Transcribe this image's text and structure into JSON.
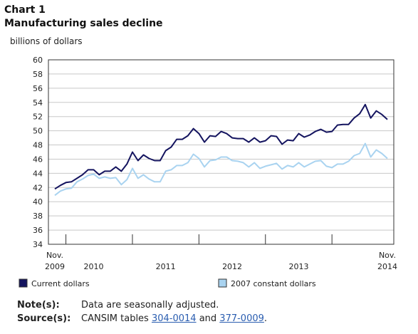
{
  "header": {
    "chart_label": "Chart 1",
    "chart_title": "Manufacturing sales decline",
    "unit": "billions of dollars"
  },
  "notes": {
    "note_key": "Note(s):",
    "note_text": "Data are seasonally adjusted.",
    "source_key": "Source(s):",
    "source_prefix": "CANSIM tables ",
    "link1": "304-0014",
    "source_mid": " and ",
    "link2": "377-0009",
    "source_suffix": "."
  },
  "colors": {
    "current": "#14145f",
    "constant": "#a9d3f0",
    "axis": "#333333",
    "grid": "#c8c8c8"
  },
  "chart_data": {
    "type": "line",
    "ylim": [
      34,
      60
    ],
    "yticks": [
      "34",
      "36",
      "38",
      "40",
      "42",
      "44",
      "46",
      "48",
      "50",
      "52",
      "54",
      "56",
      "58",
      "60"
    ],
    "x_labels": [
      {
        "month": 0,
        "line1": "Nov.",
        "line2": "2009"
      },
      {
        "month": 7,
        "line1": "",
        "line2": "2010"
      },
      {
        "month": 20,
        "line1": "",
        "line2": "2011"
      },
      {
        "month": 32,
        "line1": "",
        "line2": "2012"
      },
      {
        "month": 44,
        "line1": "",
        "line2": "2013"
      },
      {
        "month": 60,
        "line1": "Nov.",
        "line2": "2014"
      }
    ],
    "year_ticks": [
      2,
      14,
      26,
      38,
      50
    ],
    "x_range": [
      "Nov. 2009",
      "Nov. 2014"
    ],
    "grid": true,
    "legend_position": "bottom",
    "series": [
      {
        "name": "Current dollars",
        "values": [
          41.8,
          42.3,
          42.7,
          42.8,
          43.3,
          43.8,
          44.5,
          44.5,
          43.8,
          44.3,
          44.3,
          44.9,
          44.3,
          45.3,
          47.0,
          45.8,
          46.6,
          46.1,
          45.8,
          45.8,
          47.2,
          47.7,
          48.8,
          48.8,
          49.3,
          50.3,
          49.6,
          48.4,
          49.3,
          49.2,
          49.9,
          49.6,
          49.0,
          48.9,
          48.9,
          48.4,
          49.0,
          48.4,
          48.6,
          49.3,
          49.2,
          48.1,
          48.7,
          48.6,
          49.6,
          49.1,
          49.4,
          49.9,
          50.2,
          49.8,
          49.9,
          50.8,
          50.9,
          50.9,
          51.8,
          52.4,
          53.7,
          51.8,
          52.8,
          52.3,
          51.6
        ]
      },
      {
        "name": "2007 constant dollars",
        "values": [
          40.9,
          41.5,
          41.8,
          41.9,
          42.8,
          43.2,
          43.7,
          43.9,
          43.3,
          43.5,
          43.3,
          43.4,
          42.4,
          43.1,
          44.7,
          43.3,
          43.8,
          43.2,
          42.8,
          42.8,
          44.3,
          44.5,
          45.1,
          45.1,
          45.5,
          46.7,
          46.1,
          44.9,
          45.8,
          45.9,
          46.3,
          46.3,
          45.8,
          45.7,
          45.5,
          44.9,
          45.5,
          44.7,
          45.0,
          45.2,
          45.4,
          44.6,
          45.1,
          44.9,
          45.5,
          44.9,
          45.3,
          45.7,
          45.8,
          45.0,
          44.8,
          45.3,
          45.3,
          45.7,
          46.5,
          46.8,
          48.2,
          46.3,
          47.3,
          46.8,
          46.1
        ]
      }
    ]
  }
}
